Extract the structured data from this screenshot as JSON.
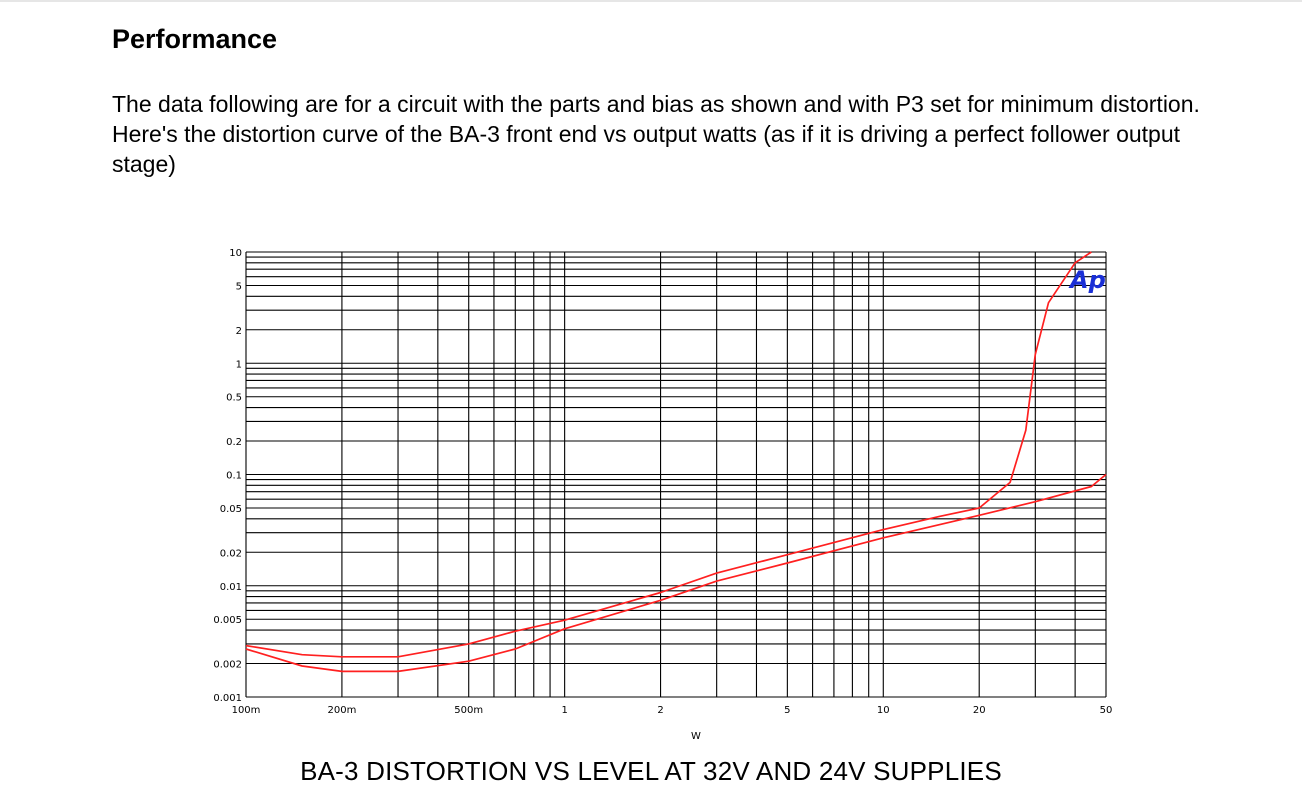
{
  "document": {
    "heading": "Performance",
    "paragraph": "The data following are for a circuit with the parts and bias as shown and with P3 set for minimum distortion.  Here's the distortion curve of the BA-3 front end vs output watts (as if it is driving a perfect follower output stage)"
  },
  "chart_data": {
    "type": "line",
    "title": "BA-3 DISTORTION VS LEVEL AT 32V AND 24V SUPPLIES",
    "xlabel": "W",
    "ylabel": "",
    "x_scale": "log",
    "y_scale": "log",
    "xlim": [
      0.1,
      50
    ],
    "ylim": [
      0.001,
      10
    ],
    "grid": true,
    "logo": "Ap",
    "colors": {
      "grid": "#000000",
      "curve": "#ff2020",
      "logo": "#1a2fd6"
    },
    "x_ticks": [
      {
        "value": 0.1,
        "label": "100m"
      },
      {
        "value": 0.2,
        "label": "200m"
      },
      {
        "value": 0.5,
        "label": "500m"
      },
      {
        "value": 1,
        "label": "1"
      },
      {
        "value": 2,
        "label": "2"
      },
      {
        "value": 5,
        "label": "5"
      },
      {
        "value": 10,
        "label": "10"
      },
      {
        "value": 20,
        "label": "20"
      },
      {
        "value": 50,
        "label": "50"
      }
    ],
    "y_ticks": [
      {
        "value": 10,
        "label": "10"
      },
      {
        "value": 5,
        "label": "5"
      },
      {
        "value": 2,
        "label": "2"
      },
      {
        "value": 1,
        "label": "1"
      },
      {
        "value": 0.5,
        "label": "0.5"
      },
      {
        "value": 0.2,
        "label": "0.2"
      },
      {
        "value": 0.1,
        "label": "0.1"
      },
      {
        "value": 0.05,
        "label": "0.05"
      },
      {
        "value": 0.02,
        "label": "0.02"
      },
      {
        "value": 0.01,
        "label": "0.01"
      },
      {
        "value": 0.005,
        "label": "0.005"
      },
      {
        "value": 0.002,
        "label": "0.002"
      },
      {
        "value": 0.001,
        "label": "0.001"
      }
    ],
    "series": [
      {
        "values": [
          [
            0.1,
            0.0029
          ],
          [
            0.15,
            0.0024
          ],
          [
            0.2,
            0.0023
          ],
          [
            0.3,
            0.0023
          ],
          [
            0.5,
            0.003
          ],
          [
            0.7,
            0.0039
          ],
          [
            1,
            0.0049
          ],
          [
            2,
            0.0087
          ],
          [
            3,
            0.013
          ],
          [
            5,
            0.019
          ],
          [
            10,
            0.032
          ],
          [
            15,
            0.042
          ],
          [
            20,
            0.05
          ],
          [
            25,
            0.085
          ],
          [
            28,
            0.25
          ],
          [
            30,
            1.2
          ],
          [
            33,
            3.5
          ],
          [
            40,
            8.0
          ],
          [
            45,
            10.0
          ]
        ]
      },
      {
        "values": [
          [
            0.1,
            0.0027
          ],
          [
            0.15,
            0.0019
          ],
          [
            0.2,
            0.0017
          ],
          [
            0.3,
            0.0017
          ],
          [
            0.5,
            0.0021
          ],
          [
            0.7,
            0.0027
          ],
          [
            1,
            0.0041
          ],
          [
            2,
            0.0074
          ],
          [
            3,
            0.011
          ],
          [
            5,
            0.016
          ],
          [
            10,
            0.027
          ],
          [
            20,
            0.043
          ],
          [
            30,
            0.057
          ],
          [
            45,
            0.078
          ],
          [
            50,
            0.1
          ]
        ]
      }
    ]
  }
}
